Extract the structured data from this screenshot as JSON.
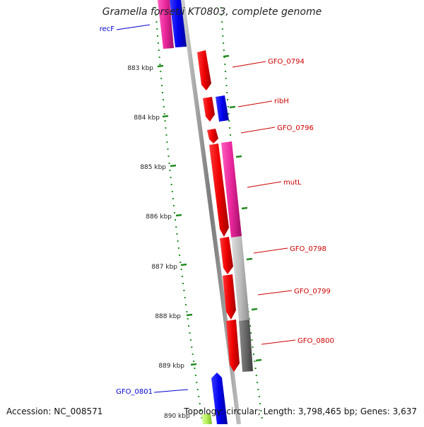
{
  "title": "Gramella forsetii KT0803, complete genome",
  "footer": {
    "accession": "Accession: NC_008571",
    "summary": "Topology: circular; Length: 3,798,465 bp; Genes: 3,637"
  },
  "ruler": [
    "883 kbp",
    "884 kbp",
    "885 kbp",
    "886 kbp",
    "887 kbp",
    "888 kbp",
    "889 kbp",
    "890 kbp"
  ],
  "gene_labels": [
    {
      "text": "recF",
      "color": "#0000cc"
    },
    {
      "text": "GFO_0794",
      "color": "#cc0000"
    },
    {
      "text": "ribH",
      "color": "#cc0000"
    },
    {
      "text": "GFO_0796",
      "color": "#cc0000"
    },
    {
      "text": "mutL",
      "color": "#cc0000"
    },
    {
      "text": "GFO_0798",
      "color": "#cc0000"
    },
    {
      "text": "GFO_0799",
      "color": "#cc0000"
    },
    {
      "text": "GFO_0800",
      "color": "#cc0000"
    },
    {
      "text": "GFO_0801",
      "color": "#0000cc"
    }
  ],
  "colors": {
    "forward_gene": "#ee0000",
    "reverse_gene": "#0000ee",
    "category_magenta": "#e8259a",
    "category_light_gray": "#bdbdbd",
    "category_dark_gray": "#666666",
    "category_lime": "#b6f05a",
    "backbone": "#888888",
    "dots": "#228b22"
  }
}
